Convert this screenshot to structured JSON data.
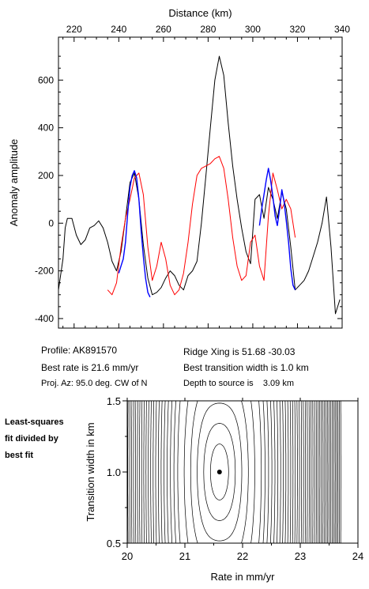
{
  "chart_data": [
    {
      "type": "line",
      "title": "",
      "xlabel": "Distance (km)",
      "ylabel": "Anomaly amplitude",
      "xlim": [
        213,
        340
      ],
      "ylim": [
        -440,
        780
      ],
      "x_ticks": [
        220,
        240,
        260,
        280,
        300,
        320,
        340
      ],
      "y_ticks": [
        -400,
        -200,
        0,
        200,
        400,
        600
      ],
      "series": [
        {
          "color": "#000000",
          "x": [
            213,
            215,
            216,
            217,
            219,
            221,
            223,
            225,
            227,
            229,
            231,
            233,
            235,
            237,
            239,
            241,
            243,
            245,
            247,
            249,
            251,
            253,
            255,
            257,
            259,
            261,
            263,
            265,
            267,
            269,
            271,
            273,
            275,
            277,
            279,
            281,
            283,
            285,
            287,
            289,
            291,
            293,
            295,
            297,
            299,
            301,
            303,
            305,
            307,
            309,
            311,
            313,
            315,
            317,
            319,
            321,
            323,
            325,
            327,
            329,
            331,
            333,
            335,
            337,
            339
          ],
          "y": [
            -280,
            -150,
            -20,
            20,
            20,
            -50,
            -90,
            -70,
            -20,
            -10,
            10,
            -20,
            -80,
            -160,
            -200,
            -120,
            20,
            170,
            210,
            100,
            -90,
            -230,
            -300,
            -290,
            -270,
            -230,
            -200,
            -220,
            -260,
            -280,
            -220,
            -200,
            -160,
            0,
            200,
            400,
            600,
            700,
            620,
            420,
            240,
            100,
            -20,
            -120,
            -170,
            100,
            120,
            20,
            150,
            100,
            20,
            130,
            60,
            -100,
            -280,
            -260,
            -240,
            -200,
            -140,
            -80,
            0,
            110,
            -100,
            -380,
            -320
          ]
        },
        {
          "color": "#ff0000",
          "x": [
            235,
            237,
            239,
            241,
            243,
            245,
            247,
            249,
            251,
            253,
            255,
            257,
            259,
            261,
            263,
            265,
            267,
            269,
            271,
            273,
            275,
            277,
            279,
            281,
            283,
            285,
            287,
            289,
            291,
            293,
            295,
            297,
            299,
            301,
            303,
            305,
            307,
            309,
            311,
            313,
            315,
            317,
            319
          ],
          "y": [
            -280,
            -300,
            -250,
            -100,
            20,
            100,
            190,
            210,
            120,
            -100,
            -240,
            -180,
            -80,
            -150,
            -260,
            -300,
            -280,
            -210,
            -80,
            80,
            200,
            230,
            240,
            250,
            270,
            280,
            230,
            100,
            -60,
            -180,
            -240,
            -220,
            -80,
            -50,
            -180,
            -240,
            30,
            210,
            140,
            60,
            100,
            60,
            -60
          ]
        },
        {
          "color": "#0000ff",
          "x": [
            240,
            241,
            242,
            243,
            244,
            245,
            246,
            247,
            248,
            249,
            250,
            251,
            252,
            253,
            254,
            303,
            304,
            305,
            306,
            307,
            308,
            309,
            310,
            311,
            312,
            313,
            314,
            315,
            316,
            317,
            318,
            319
          ],
          "y": [
            -210,
            -180,
            -150,
            -80,
            40,
            150,
            200,
            220,
            190,
            100,
            -30,
            -140,
            -230,
            -290,
            -310,
            -10,
            60,
            120,
            180,
            230,
            180,
            110,
            30,
            -10,
            60,
            140,
            90,
            10,
            -80,
            -190,
            -260,
            -280
          ]
        }
      ]
    },
    {
      "type": "contour",
      "xlabel": "Rate in mm/yr",
      "ylabel": "Transition width in km",
      "xlim": [
        20,
        24
      ],
      "ylim": [
        0.5,
        1.5
      ],
      "x_ticks": [
        20,
        21,
        22,
        23,
        24
      ],
      "y_ticks": [
        0.5,
        1.0,
        1.5
      ],
      "best_fit_point": [
        21.6,
        1.0
      ]
    }
  ],
  "info": {
    "profile": "Profile: AK891570",
    "best_rate": "Best rate is 21.6 mm/yr",
    "proj_az": "Proj. Az: 95.0 deg. CW of N",
    "ridge_xing": "Ridge Xing is 51.68 -30.03",
    "best_transition": "Best transition width is 1.0 km",
    "depth_to_source": "Depth to source is    3.09 km"
  },
  "side_label": "Least-squares\nfit divided by\nbest fit"
}
